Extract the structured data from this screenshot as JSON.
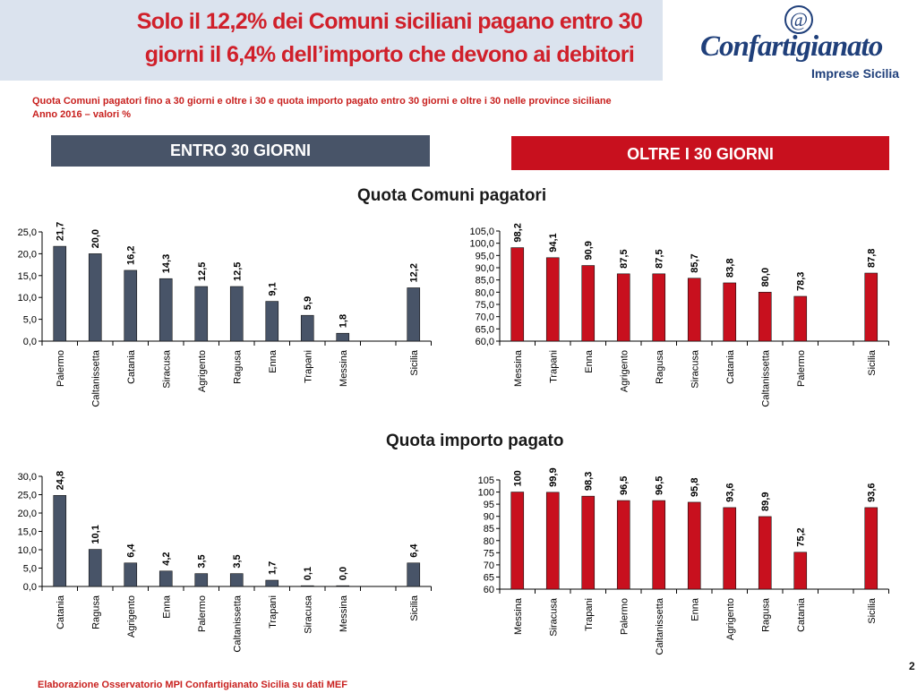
{
  "header": {
    "title_line1": "Solo il 12,2% dei Comuni siciliani pagano entro 30",
    "title_line2": "giorni il 6,4% dell’importo che devono ai debitori",
    "logo_name": "Confartigianato",
    "logo_sub": "Imprese Sicilia",
    "logo_mark": "@"
  },
  "subtitle": {
    "line1": "Quota Comuni pagatori fino a 30 giorni  e oltre i 30 e quota importo pagato entro 30 giorni e oltre i 30 nelle province siciliane",
    "line2": "Anno 2016 – valori %"
  },
  "bands": {
    "left": "ENTRO 30 GIORNI",
    "right": "OLTRE I 30 GIORNI"
  },
  "sections": {
    "top": "Quota Comuni pagatori",
    "bottom": "Quota importo pagato"
  },
  "footer": "Elaborazione Osservatorio MPI Confartigianato Sicilia su dati MEF",
  "page_number": "2",
  "colors": {
    "left_bars": "#485468",
    "right_bars": "#c8101e",
    "title": "#d0202a"
  },
  "chart_data": [
    {
      "id": "entro-comuni",
      "type": "bar",
      "title": "Quota Comuni pagatori",
      "categories": [
        "Palermo",
        "Caltanissetta",
        "Catania",
        "Siracusa",
        "Agrigento",
        "Ragusa",
        "Enna",
        "Trapani",
        "Messina",
        "",
        "Sicilia"
      ],
      "values": [
        21.7,
        20.0,
        16.2,
        14.3,
        12.5,
        12.5,
        9.1,
        5.9,
        1.8,
        null,
        12.2
      ],
      "labels": [
        "21,7",
        "20,0",
        "16,2",
        "14,3",
        "12,5",
        "12,5",
        "9,1",
        "5,9",
        "1,8",
        "",
        "12,2"
      ],
      "ylim": [
        0,
        25
      ],
      "yticks": [
        "0,0",
        "5,0",
        "10,0",
        "15,0",
        "20,0",
        "25,0"
      ],
      "color": "#485468"
    },
    {
      "id": "oltre-comuni",
      "type": "bar",
      "title": "Quota Comuni pagatori",
      "categories": [
        "Messina",
        "Trapani",
        "Enna",
        "Agrigento",
        "Ragusa",
        "Siracusa",
        "Catania",
        "Caltanissetta",
        "Palermo",
        "",
        "Sicilia"
      ],
      "values": [
        98.2,
        94.1,
        90.9,
        87.5,
        87.5,
        85.7,
        83.8,
        80.0,
        78.3,
        null,
        87.8
      ],
      "labels": [
        "98,2",
        "94,1",
        "90,9",
        "87,5",
        "87,5",
        "85,7",
        "83,8",
        "80,0",
        "78,3",
        "",
        "87,8"
      ],
      "ylim": [
        60,
        105
      ],
      "yticks": [
        "60,0",
        "65,0",
        "70,0",
        "75,0",
        "80,0",
        "85,0",
        "90,0",
        "95,0",
        "100,0",
        "105,0"
      ],
      "color": "#c8101e"
    },
    {
      "id": "entro-importo",
      "type": "bar",
      "title": "Quota importo pagato",
      "categories": [
        "Catania",
        "Ragusa",
        "Agrigento",
        "Enna",
        "Palermo",
        "Caltanissetta",
        "Trapani",
        "Siracusa",
        "Messina",
        "",
        "Sicilia"
      ],
      "values": [
        24.8,
        10.1,
        6.4,
        4.2,
        3.5,
        3.5,
        1.7,
        0.1,
        0.0,
        null,
        6.4
      ],
      "labels": [
        "24,8",
        "10,1",
        "6,4",
        "4,2",
        "3,5",
        "3,5",
        "1,7",
        "0,1",
        "0,0",
        "",
        "6,4"
      ],
      "ylim": [
        0,
        30
      ],
      "yticks": [
        "0,0",
        "5,0",
        "10,0",
        "15,0",
        "20,0",
        "25,0",
        "30,0"
      ],
      "color": "#485468"
    },
    {
      "id": "oltre-importo",
      "type": "bar",
      "title": "Quota importo pagato",
      "categories": [
        "Messina",
        "Siracusa",
        "Trapani",
        "Palermo",
        "Caltanissetta",
        "Enna",
        "Agrigento",
        "Ragusa",
        "Catania",
        "",
        "Sicilia"
      ],
      "values": [
        100,
        99.9,
        98.3,
        96.5,
        96.5,
        95.8,
        93.6,
        89.9,
        75.2,
        null,
        93.6
      ],
      "labels": [
        "100",
        "99,9",
        "98,3",
        "96,5",
        "96,5",
        "95,8",
        "93,6",
        "89,9",
        "75,2",
        "",
        "93,6"
      ],
      "ylim": [
        60,
        105
      ],
      "yticks": [
        "60",
        "65",
        "70",
        "75",
        "80",
        "85",
        "90",
        "95",
        "100",
        "105"
      ],
      "color": "#c8101e"
    }
  ]
}
